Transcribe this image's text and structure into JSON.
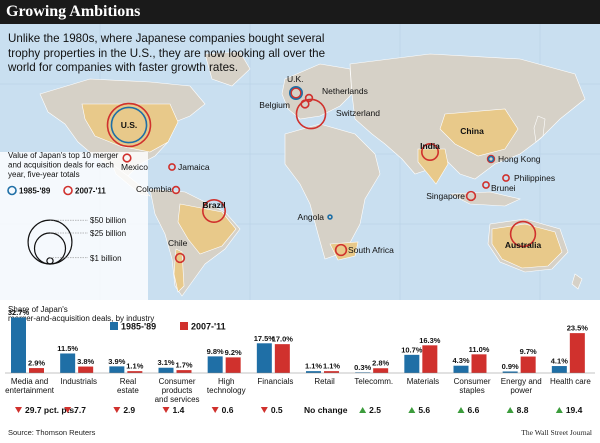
{
  "title": "Growing Ambitions",
  "subtitle": "Unlike the 1980s, where Japanese companies bought several trophy properties in the U.S., they are now looking all over the world for companies with faster growth rates.",
  "source": "Source: Thomson Reuters",
  "credit": "The Wall Street Journal",
  "colors": {
    "blue": "#1f6fa6",
    "red": "#d0312d",
    "land": "#cfcac0",
    "highlight": "#e8c98a",
    "ocean": "#c9dff0",
    "down": "#d0312d",
    "up": "#3c9c3c"
  },
  "chart_data": [
    {
      "type": "bubble-map",
      "legend_title": "Value of Japan's top 10 merger and acquisition deals for each year, five-year totals",
      "series": [
        {
          "name": "1985-'89",
          "color": "#1f6fa6"
        },
        {
          "name": "2007-'11",
          "color": "#d0312d"
        }
      ],
      "size_legend": [
        {
          "label": "$50 billion",
          "value_billion": 50
        },
        {
          "label": "$25 billion",
          "value_billion": 25
        },
        {
          "label": "$1 billion",
          "value_billion": 1
        }
      ],
      "countries": [
        {
          "name": "U.S.",
          "v1985": 32,
          "v2007": 48
        },
        {
          "name": "U.K.",
          "v1985": 4,
          "v2007": 2.5
        },
        {
          "name": "Netherlands",
          "v1985": 0,
          "v2007": 1.2
        },
        {
          "name": "Belgium",
          "v1985": 0,
          "v2007": 1.5
        },
        {
          "name": "Switzerland",
          "v1985": 0,
          "v2007": 22
        },
        {
          "name": "Mexico",
          "v1985": 0,
          "v2007": 1.5
        },
        {
          "name": "Jamaica",
          "v1985": 0,
          "v2007": 1
        },
        {
          "name": "Colombia",
          "v1985": 0,
          "v2007": 1.2
        },
        {
          "name": "Brazil",
          "v1985": 0,
          "v2007": 13
        },
        {
          "name": "Chile",
          "v1985": 0,
          "v2007": 2
        },
        {
          "name": "China",
          "v1985": 0,
          "v2007": 0
        },
        {
          "name": "India",
          "v1985": 0,
          "v2007": 7
        },
        {
          "name": "Hong Kong",
          "v1985": 0.6,
          "v2007": 1.2
        },
        {
          "name": "Philippines",
          "v1985": 0,
          "v2007": 1
        },
        {
          "name": "Singapore",
          "v1985": 0,
          "v2007": 2
        },
        {
          "name": "Brunei",
          "v1985": 0,
          "v2007": 1
        },
        {
          "name": "Angola",
          "v1985": 0.4,
          "v2007": 0
        },
        {
          "name": "South Africa",
          "v1985": 0,
          "v2007": 3
        },
        {
          "name": "Australia",
          "v1985": 0,
          "v2007": 16
        }
      ]
    },
    {
      "type": "bar",
      "title": "Share of Japan's merger-and-acquisition deals, by industry",
      "ylim": [
        0,
        33
      ],
      "series": [
        {
          "name": "1985-'89",
          "color": "#1f6fa6",
          "values": [
            32.7,
            11.5,
            3.9,
            3.1,
            9.8,
            17.5,
            1.1,
            0.3,
            10.7,
            4.3,
            0.9,
            4.1
          ]
        },
        {
          "name": "2007-'11",
          "color": "#d0312d",
          "values": [
            2.9,
            3.8,
            1.1,
            1.7,
            9.2,
            17.0,
            1.1,
            2.8,
            16.3,
            11.0,
            9.7,
            23.5
          ]
        }
      ],
      "value_labels_1985": [
        "32.7%",
        "11.5%",
        "3.9%",
        "3.1%",
        "9.8%",
        "17.5%",
        "1.1%",
        "0.3%",
        "10.7%",
        "4.3%",
        "0.9%",
        "4.1%"
      ],
      "value_labels_2007": [
        "2.9%",
        "3.8%",
        "1.1%",
        "1.7%",
        "9.2%",
        "17.0%",
        "1.1%",
        "2.8%",
        "16.3%",
        "11.0%",
        "9.7%",
        "23.5%"
      ],
      "categories": [
        [
          "Media and",
          "entertainment"
        ],
        [
          "Industrials"
        ],
        [
          "Real",
          "estate"
        ],
        [
          "Consumer",
          "products",
          "and services"
        ],
        [
          "High",
          "technology"
        ],
        [
          "Financials"
        ],
        [
          "Retail"
        ],
        [
          "Telecomm."
        ],
        [
          "Materials"
        ],
        [
          "Consumer",
          "staples"
        ],
        [
          "Energy and",
          "power"
        ],
        [
          "Health care"
        ]
      ],
      "changes": [
        {
          "dir": "down",
          "text": "29.7 pct. pts."
        },
        {
          "dir": "down",
          "text": "7.7"
        },
        {
          "dir": "down",
          "text": "2.9"
        },
        {
          "dir": "down",
          "text": "1.4"
        },
        {
          "dir": "down",
          "text": "0.6"
        },
        {
          "dir": "down",
          "text": "0.5"
        },
        {
          "dir": "none",
          "text": "No change"
        },
        {
          "dir": "up",
          "text": "2.5"
        },
        {
          "dir": "up",
          "text": "5.6"
        },
        {
          "dir": "up",
          "text": "6.6"
        },
        {
          "dir": "up",
          "text": "8.8"
        },
        {
          "dir": "up",
          "text": "19.4"
        }
      ]
    }
  ]
}
